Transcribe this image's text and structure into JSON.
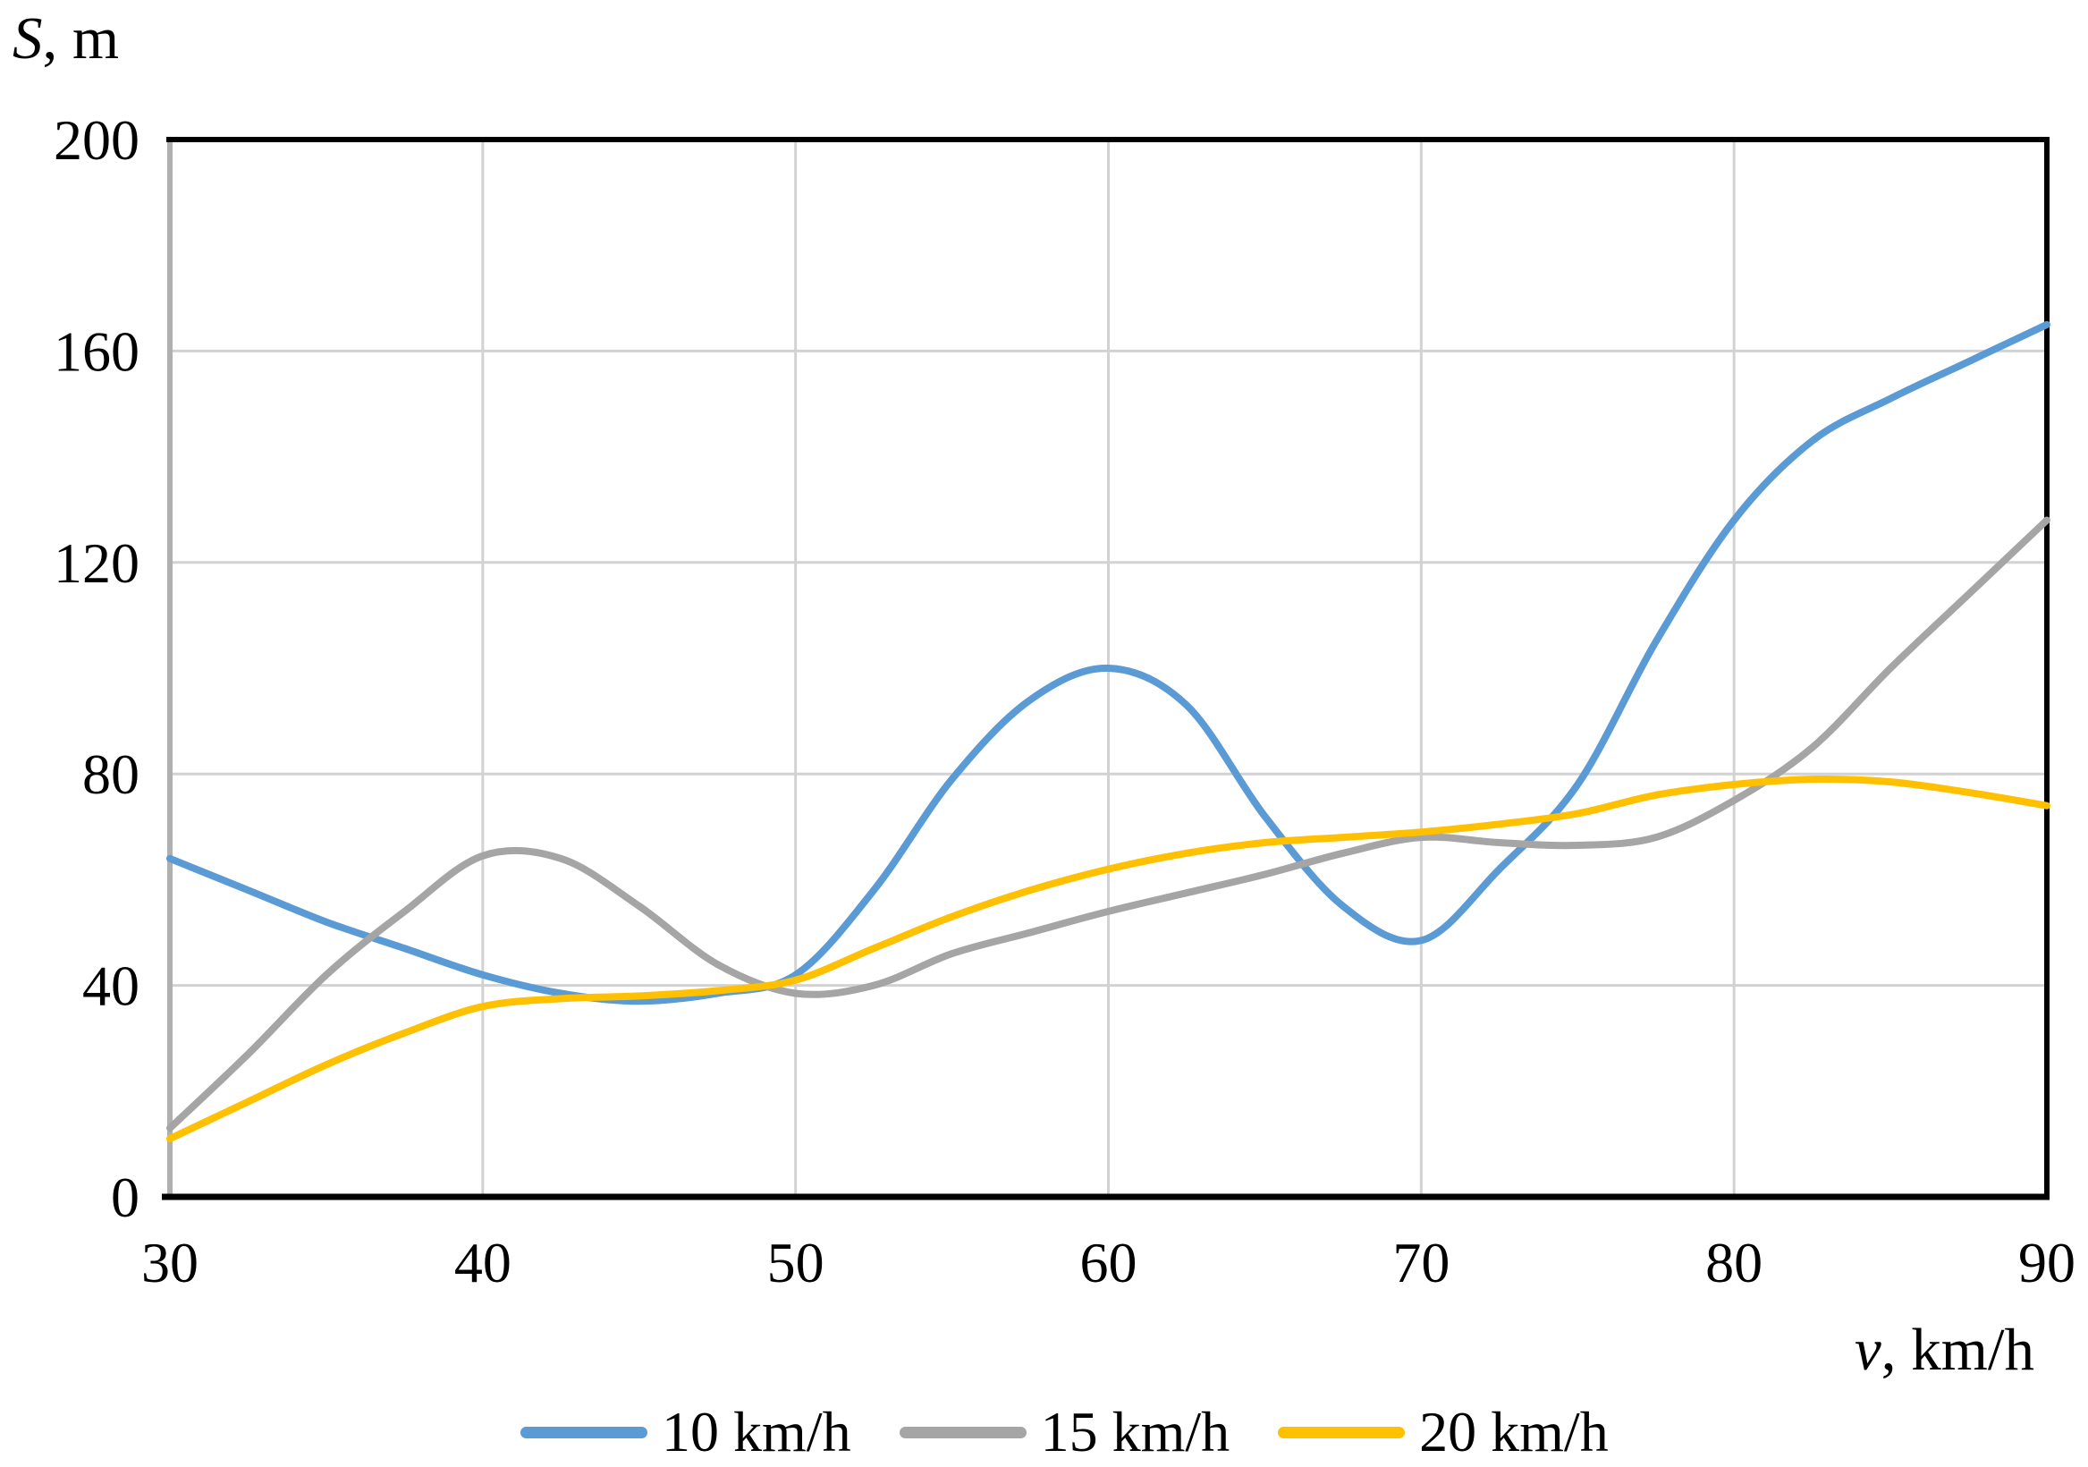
{
  "page": {
    "background": "#ffffff"
  },
  "chart_data": {
    "type": "line",
    "title": "",
    "ylabel": {
      "variable": "S",
      "rest": ", m"
    },
    "xlabel": {
      "variable": "v",
      "rest": ", km/h"
    },
    "xlim": [
      30,
      90
    ],
    "ylim": [
      0,
      200
    ],
    "x_ticks": [
      30,
      40,
      50,
      60,
      70,
      80,
      90
    ],
    "y_ticks": [
      0,
      40,
      80,
      120,
      160,
      200
    ],
    "grid": true,
    "legend_position": "bottom-center",
    "x_sampled": [
      30,
      32.5,
      35,
      37.5,
      40,
      42.5,
      45,
      47.5,
      50,
      52.5,
      55,
      57.5,
      60,
      62.5,
      65,
      67.5,
      70,
      72.5,
      75,
      77.5,
      80,
      82.5,
      85,
      87.5,
      90
    ],
    "series": [
      {
        "name": "10 km/h",
        "color": "#5B9BD5",
        "values": [
          64,
          58,
          52,
          47,
          42,
          38.5,
          37,
          38.5,
          42,
          58,
          79,
          94,
          100,
          93,
          72,
          55,
          48.5,
          62,
          78,
          105,
          128,
          143,
          151,
          158,
          165
        ]
      },
      {
        "name": "15 km/h",
        "color": "#A5A5A5",
        "values": [
          13,
          27,
          42,
          54,
          64.5,
          64,
          55,
          44,
          38.5,
          40,
          46,
          50,
          54,
          57.5,
          61,
          65,
          68,
          67,
          66.5,
          68,
          75,
          85,
          100,
          114,
          128
        ]
      },
      {
        "name": "20 km/h",
        "color": "#FFC000",
        "values": [
          11,
          18,
          25,
          31,
          36,
          37.5,
          38,
          39,
          41,
          47,
          53,
          58,
          62,
          65,
          67,
          68,
          69,
          70.5,
          72.5,
          76,
          78,
          79,
          78.5,
          76.5,
          74
        ]
      }
    ],
    "key_points_at_10_step": {
      "x": [
        30,
        40,
        50,
        60,
        70,
        80,
        90
      ],
      "10 km/h": [
        64,
        42,
        42,
        100,
        49,
        128,
        165
      ],
      "15 km/h": [
        13,
        64,
        38,
        54,
        68,
        75,
        128
      ],
      "20 km/h": [
        11,
        36,
        41,
        62,
        69,
        78,
        74
      ]
    },
    "grid_color": "#d2d2d2",
    "border_color": "#000000",
    "left_axis_color": "#b0b0b0",
    "text_color": "#000000",
    "line_width": 8
  }
}
